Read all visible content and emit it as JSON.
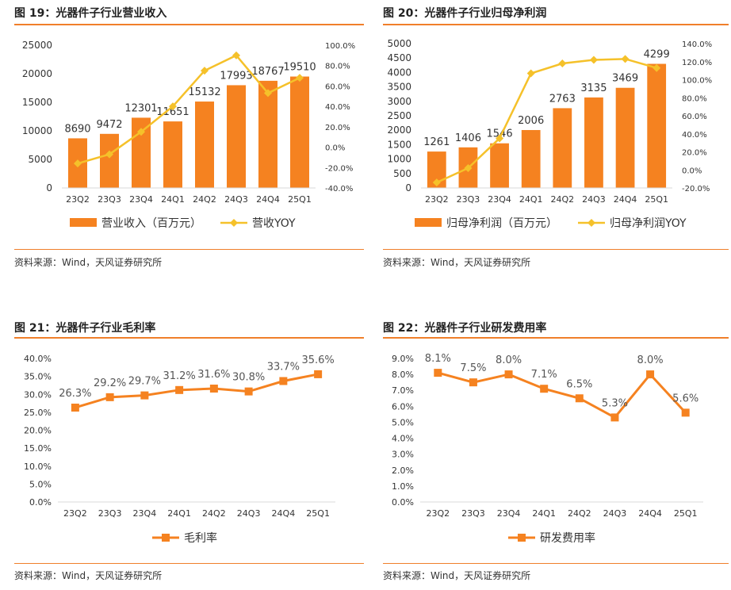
{
  "colors": {
    "bar": "#f58220",
    "line": "#f5c12a",
    "line_orange": "#f58220",
    "rule": "#f07f2a"
  },
  "source_text": "资料来源：Wind，天风证券研究所",
  "chart_data": [
    {
      "type": "bar",
      "title": "图 19：光器件子行业营业收入",
      "categories": [
        "23Q2",
        "23Q3",
        "23Q4",
        "24Q1",
        "24Q2",
        "24Q3",
        "24Q4",
        "25Q1"
      ],
      "series": [
        {
          "name": "营业收入（百万元）",
          "type": "bar",
          "axis": "left",
          "values": [
            8690,
            9472,
            12301,
            11651,
            15132,
            17993,
            18767,
            19510
          ],
          "labels": [
            "8690",
            "9472",
            "12301",
            "11651",
            "15132",
            "17993",
            "18767",
            "19510"
          ]
        },
        {
          "name": "营收YOY",
          "type": "line",
          "axis": "right",
          "values": [
            -16,
            -7,
            15,
            40,
            75,
            90,
            53,
            68
          ]
        }
      ],
      "ylim": [
        0,
        25000
      ],
      "yticks": [
        "0",
        "5000",
        "10000",
        "15000",
        "20000",
        "25000"
      ],
      "y2lim": [
        -40,
        100
      ],
      "y2ticks": [
        "-40.0%",
        "-20.0%",
        "0.0%",
        "20.0%",
        "40.0%",
        "60.0%",
        "80.0%",
        "100.0%"
      ],
      "legend": "bottom"
    },
    {
      "type": "bar",
      "title": "图 20：光器件子行业归母净利润",
      "categories": [
        "23Q2",
        "23Q3",
        "23Q4",
        "24Q1",
        "24Q2",
        "24Q3",
        "24Q4",
        "25Q1"
      ],
      "series": [
        {
          "name": "归母净利润（百万元）",
          "type": "bar",
          "axis": "left",
          "values": [
            1261,
            1406,
            1546,
            2006,
            2763,
            3135,
            3469,
            4299
          ],
          "labels": [
            "1261",
            "1406",
            "1546",
            "2006",
            "2763",
            "3135",
            "3469",
            "4299"
          ]
        },
        {
          "name": "归母净利润YOY",
          "type": "line",
          "axis": "right",
          "values": [
            -14,
            2,
            35,
            107,
            118,
            122,
            123,
            113
          ]
        }
      ],
      "ylim": [
        0,
        5000
      ],
      "yticks": [
        "0",
        "500",
        "1000",
        "1500",
        "2000",
        "2500",
        "3000",
        "3500",
        "4000",
        "4500",
        "5000"
      ],
      "y2lim": [
        -20,
        140
      ],
      "y2ticks": [
        "-20.0%",
        "0.0%",
        "20.0%",
        "40.0%",
        "60.0%",
        "80.0%",
        "100.0%",
        "120.0%",
        "140.0%"
      ],
      "legend": "bottom"
    },
    {
      "type": "line",
      "title": "图 21：光器件子行业毛利率",
      "categories": [
        "23Q2",
        "23Q3",
        "23Q4",
        "24Q1",
        "24Q2",
        "24Q3",
        "24Q4",
        "25Q1"
      ],
      "series": [
        {
          "name": "毛利率",
          "values": [
            26.3,
            29.2,
            29.7,
            31.2,
            31.6,
            30.8,
            33.7,
            35.6
          ],
          "labels": [
            "26.3%",
            "29.2%",
            "29.7%",
            "31.2%",
            "31.6%",
            "30.8%",
            "33.7%",
            "35.6%"
          ]
        }
      ],
      "ylim": [
        0,
        40
      ],
      "yticks": [
        "0.0%",
        "5.0%",
        "10.0%",
        "15.0%",
        "20.0%",
        "25.0%",
        "30.0%",
        "35.0%",
        "40.0%"
      ],
      "legend": "bottom"
    },
    {
      "type": "line",
      "title": "图 22：光器件子行业研发费用率",
      "categories": [
        "23Q2",
        "23Q3",
        "23Q4",
        "24Q1",
        "24Q2",
        "24Q3",
        "24Q4",
        "25Q1"
      ],
      "series": [
        {
          "name": "研发费用率",
          "values": [
            8.1,
            7.5,
            8.0,
            7.1,
            6.5,
            5.3,
            8.0,
            5.6
          ],
          "labels": [
            "8.1%",
            "7.5%",
            "8.0%",
            "7.1%",
            "6.5%",
            "5.3%",
            "8.0%",
            "5.6%"
          ]
        }
      ],
      "ylim": [
        0,
        9
      ],
      "yticks": [
        "0.0%",
        "1.0%",
        "2.0%",
        "3.0%",
        "4.0%",
        "5.0%",
        "6.0%",
        "7.0%",
        "8.0%",
        "9.0%"
      ],
      "legend": "bottom"
    }
  ]
}
